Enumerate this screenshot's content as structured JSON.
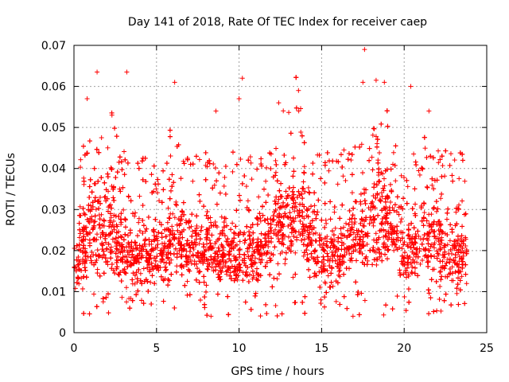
{
  "chart_data": {
    "type": "scatter",
    "title": "Day 141 of 2018, Rate Of TEC Index for receiver caep",
    "xlabel": "GPS time / hours",
    "ylabel": "ROTI / TECUs",
    "xlim": [
      0,
      25
    ],
    "ylim": [
      0,
      0.07
    ],
    "xticks": [
      0,
      5,
      10,
      15,
      20,
      25
    ],
    "yticks": [
      0,
      0.01,
      0.02,
      0.03,
      0.04,
      0.05,
      0.06,
      0.07
    ],
    "xtick_labels": [
      "0",
      "5",
      "10",
      "15",
      "20",
      "25"
    ],
    "ytick_labels": [
      "0",
      "0.01",
      "0.02",
      "0.03",
      "0.04",
      "0.05",
      "0.06",
      "0.07"
    ],
    "grid": true,
    "marker": "+",
    "color": "#ff0000",
    "series": [
      {
        "name": "ROTI",
        "x_range": [
          0,
          23.8
        ],
        "typical_range": [
          0.008,
          0.03
        ],
        "notable_points": [
          {
            "x": 17.6,
            "y": 0.069
          },
          {
            "x": 1.4,
            "y": 0.0635
          },
          {
            "x": 3.2,
            "y": 0.0635
          },
          {
            "x": 10.2,
            "y": 0.062
          },
          {
            "x": 18.3,
            "y": 0.0615
          },
          {
            "x": 6.1,
            "y": 0.061
          },
          {
            "x": 17.5,
            "y": 0.061
          },
          {
            "x": 18.8,
            "y": 0.061
          },
          {
            "x": 20.4,
            "y": 0.06
          },
          {
            "x": 13.6,
            "y": 0.059
          },
          {
            "x": 0.8,
            "y": 0.057
          },
          {
            "x": 10.0,
            "y": 0.057
          },
          {
            "x": 12.4,
            "y": 0.056
          },
          {
            "x": 8.6,
            "y": 0.054
          },
          {
            "x": 2.3,
            "y": 0.053
          },
          {
            "x": 21.5,
            "y": 0.054
          },
          {
            "x": 8.3,
            "y": 0.004
          },
          {
            "x": 16.9,
            "y": 0.004
          }
        ]
      }
    ]
  }
}
